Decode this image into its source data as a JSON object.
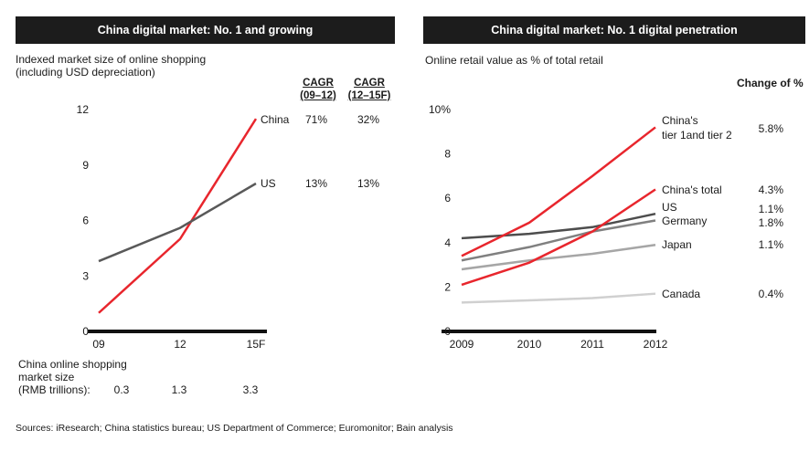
{
  "left_panel": {
    "header": "China digital market:  No. 1 and growing",
    "subtitle_line1": "Indexed market size of online shopping",
    "subtitle_line2": "(including USD depreciation)",
    "cagr_col1": {
      "line1": "CAGR",
      "line2": "(09–12)"
    },
    "cagr_col2": {
      "line1": "CAGR",
      "line2": "(12–15F)"
    },
    "rows": [
      {
        "name": "China",
        "cagr_09_12": "71%",
        "cagr_12_15f": "32%"
      },
      {
        "name": "US",
        "cagr_09_12": "13%",
        "cagr_12_15f": "13%"
      }
    ],
    "market_size": {
      "label_line1": "China online shopping",
      "label_line2": "market size",
      "label_line3": "(RMB trillions):",
      "values": [
        "0.3",
        "1.3",
        "3.3"
      ]
    }
  },
  "right_panel": {
    "header": "China digital market:  No. 1 digital penetration",
    "subtitle": "Online retail value as % of total retail",
    "change_header": "Change of %"
  },
  "sources": "Sources:  iResearch; China statistics bureau; US Department of Commerce; Euromonitor; Bain analysis",
  "chart_data": [
    {
      "type": "line",
      "categories": [
        "09",
        "12",
        "15F"
      ],
      "ylim": [
        0,
        12
      ],
      "yticks": [
        "0",
        "3",
        "6",
        "9",
        "12"
      ],
      "series": [
        {
          "name": "China",
          "values": [
            1,
            5,
            11.5
          ],
          "color": "#e8262d"
        },
        {
          "name": "US",
          "values": [
            3.8,
            5.6,
            8
          ],
          "color": "#595959"
        }
      ]
    },
    {
      "type": "line",
      "categories": [
        "2009",
        "2010",
        "2011",
        "2012"
      ],
      "ylim": [
        0,
        10
      ],
      "yticks": [
        "0",
        "2",
        "4",
        "6",
        "8",
        "10%"
      ],
      "series": [
        {
          "name": "China's tier 1and tier 2",
          "label_line1": "China's",
          "label_line2": "tier 1and tier 2",
          "change": "5.8%",
          "values": [
            3.4,
            4.9,
            7.0,
            9.2
          ],
          "color": "#e8262d"
        },
        {
          "name": "China's total",
          "change": "4.3%",
          "values": [
            2.1,
            3.1,
            4.5,
            6.4
          ],
          "color": "#e8262d"
        },
        {
          "name": "US",
          "change": "1.1%",
          "values": [
            4.2,
            4.4,
            4.7,
            5.3
          ],
          "color": "#4d4d4d"
        },
        {
          "name": "Germany",
          "change": "1.8%",
          "values": [
            3.2,
            3.8,
            4.5,
            5.0
          ],
          "color": "#808080"
        },
        {
          "name": "Japan",
          "change": "1.1%",
          "values": [
            2.8,
            3.2,
            3.5,
            3.9
          ],
          "color": "#a6a6a6"
        },
        {
          "name": "Canada",
          "change": "0.4%",
          "values": [
            1.3,
            1.4,
            1.5,
            1.7
          ],
          "color": "#d0d0d0"
        }
      ]
    }
  ]
}
